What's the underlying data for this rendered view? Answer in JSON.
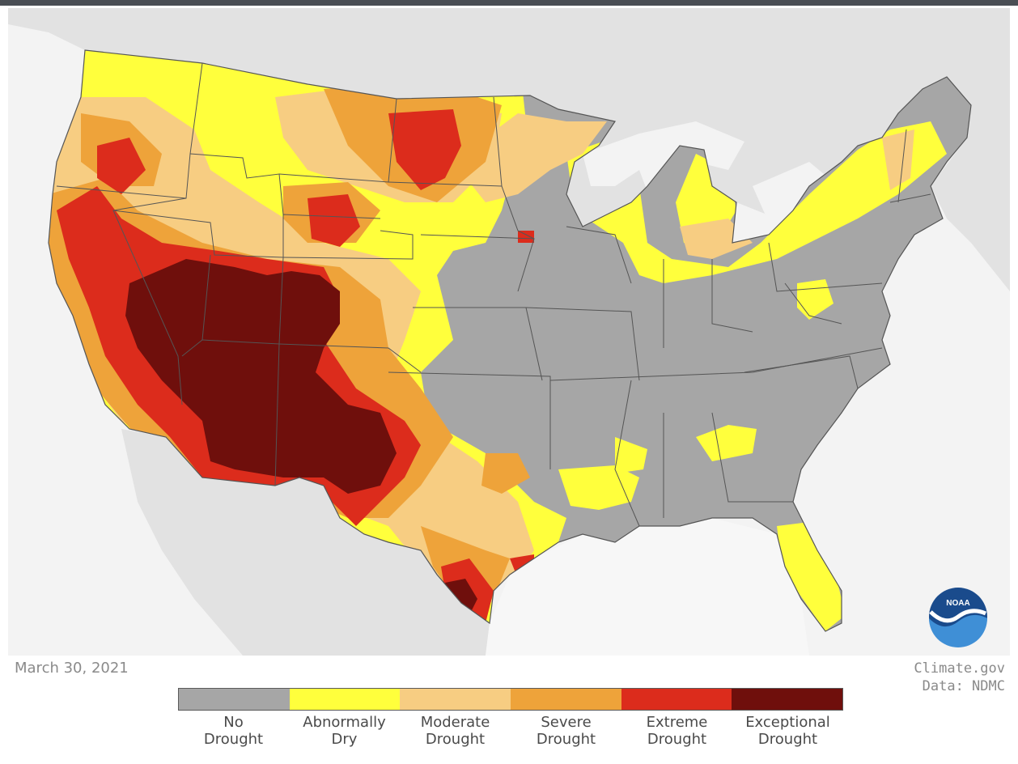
{
  "map": {
    "date": "March 30, 2021",
    "credit_line1": "Climate.gov",
    "credit_line2": "Data: NDMC",
    "logo_text": "NOAA",
    "colors": {
      "background": "#f3f3f3",
      "land_other": "#e2e2e2",
      "water": "#f7f7f7",
      "border": "#555555"
    }
  },
  "legend": {
    "items": [
      {
        "line1": "No",
        "line2": "Drought",
        "color": "#a6a6a6"
      },
      {
        "line1": "Abnormally",
        "line2": "Dry",
        "color": "#ffff3c"
      },
      {
        "line1": "Moderate",
        "line2": "Drought",
        "color": "#f7cd82"
      },
      {
        "line1": "Severe",
        "line2": "Drought",
        "color": "#eea33a"
      },
      {
        "line1": "Extreme",
        "line2": "Drought",
        "color": "#dc2c1c"
      },
      {
        "line1": "Exceptional",
        "line2": "Drought",
        "color": "#6f0f0c"
      }
    ]
  }
}
